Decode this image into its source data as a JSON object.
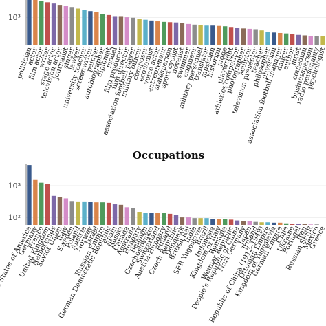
{
  "chart_data": [
    {
      "type": "bar",
      "title": "",
      "yscale": "log",
      "ylim": [
        300,
        2500
      ],
      "yticks": [
        {
          "value": 1000,
          "label": "10³"
        }
      ],
      "categories": [
        "politician",
        "actor",
        "film actor",
        "writer",
        "stage actor",
        "television actor",
        "journalist",
        "singer",
        "lawyer",
        "university teacher",
        "screenwriter",
        "painter",
        "autobiographer",
        "diplomat",
        "model",
        "film producer",
        "film director",
        "association football player",
        "military officer",
        "composer",
        "economist",
        "voice actor",
        "entrepreneur",
        "statesperson",
        "sport cyclist",
        "novelist",
        "swimmer",
        "engineer",
        "military personnel",
        "translator",
        "musician",
        "historian",
        "judge",
        "playwright",
        "athletics competitor",
        "photographer",
        "sculptor",
        "television presenter",
        "teacher",
        "philosopher",
        "physician",
        "association football manager",
        "dancer",
        "author",
        "jurist",
        "comedian",
        "businessperson",
        "radio personality",
        "psychologist"
      ],
      "values": [
        2500,
        2250,
        2000,
        1900,
        1800,
        1700,
        1650,
        1550,
        1450,
        1350,
        1300,
        1250,
        1150,
        1100,
        1050,
        1050,
        1000,
        980,
        940,
        900,
        870,
        840,
        820,
        810,
        800,
        780,
        750,
        730,
        710,
        700,
        700,
        690,
        680,
        660,
        640,
        620,
        610,
        600,
        570,
        530,
        520,
        510,
        500,
        490,
        470,
        460,
        450,
        450,
        440
      ],
      "colors": [
        "#3a5a8c",
        "#d9844a",
        "#4f9a5c",
        "#c0504d",
        "#7d68a8",
        "#8b6b58",
        "#d48cc8",
        "#8c8c8c",
        "#c2b84c",
        "#5bb0c9",
        "#3a5a8c",
        "#d9844a",
        "#4f9a5c",
        "#c0504d",
        "#7d68a8",
        "#8b6b58",
        "#d48cc8",
        "#8c8c8c",
        "#c2b84c",
        "#5bb0c9"
      ]
    },
    {
      "type": "bar",
      "title": "Occupations",
      "yscale": "log",
      "ylim": [
        58,
        5000
      ],
      "yticks": [
        {
          "value": 1000,
          "label": "10³"
        },
        {
          "value": 100,
          "label": "10²"
        }
      ],
      "categories": [
        "United States of America",
        "Germany",
        "France",
        "United Kingdom",
        "Netherlands",
        "Soviet Union",
        "Italy",
        "Sweden",
        "Poland",
        "Austria",
        "Norway",
        "Israel",
        "Russian Empire",
        "German Democratic Republic",
        "Spain",
        "Russia",
        "Canada",
        "Australia",
        "Hungary",
        "Belgium",
        "Czechoslovakia",
        "Switzerland",
        "Austria-Hungary",
        "Finland",
        "Czech Republic",
        "Denmark",
        "British Raj",
        "India",
        "SFR Yugoslavia",
        "Brazil",
        "Indonesia",
        "Kingdom of Italy",
        "Romania",
        "Weimar Republic",
        "People's Republic of China",
        "Nazi Germany",
        "Japan",
        "Ireland",
        "Republic of China (1912–1949)",
        "Ottoman Empire",
        "Kingdom of Yugoslavia",
        "German Empire",
        "Chile",
        "Ukraine",
        "Portugal",
        "Iran",
        "Russian SFSR",
        "Mexico",
        "Greece"
      ],
      "values": [
        4500,
        1600,
        1250,
        1150,
        480,
        450,
        400,
        330,
        320,
        320,
        310,
        300,
        300,
        290,
        260,
        250,
        210,
        200,
        150,
        140,
        140,
        140,
        140,
        130,
        120,
        100,
        100,
        95,
        95,
        95,
        90,
        90,
        88,
        85,
        80,
        78,
        75,
        72,
        70,
        70,
        68,
        68,
        65,
        63,
        62,
        62,
        60,
        60,
        58
      ],
      "colors": [
        "#3a5a8c",
        "#d9844a",
        "#4f9a5c",
        "#c0504d",
        "#7d68a8",
        "#8b6b58",
        "#d48cc8",
        "#8c8c8c",
        "#c2b84c",
        "#5bb0c9",
        "#3a5a8c",
        "#d9844a",
        "#4f9a5c",
        "#c0504d",
        "#7d68a8",
        "#8b6b58",
        "#d48cc8",
        "#8c8c8c",
        "#c2b84c",
        "#5bb0c9"
      ]
    }
  ]
}
